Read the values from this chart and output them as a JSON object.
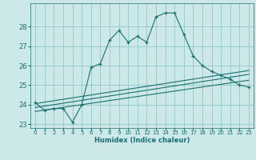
{
  "xlabel": "Humidex (Indice chaleur)",
  "bg_color": "#cce8e8",
  "line_color": "#1a7070",
  "grid_color": "#99cccc",
  "main_y": [
    24.1,
    23.7,
    23.8,
    23.8,
    23.1,
    24.0,
    25.9,
    26.1,
    27.3,
    27.8,
    27.2,
    27.5,
    27.2,
    28.5,
    28.7,
    28.7,
    27.6,
    26.5,
    26.0,
    25.7,
    25.5,
    25.3,
    25.0,
    24.9
  ],
  "x": [
    0,
    1,
    2,
    3,
    4,
    5,
    6,
    7,
    8,
    9,
    10,
    11,
    12,
    13,
    14,
    15,
    16,
    17,
    18,
    19,
    20,
    21,
    22,
    23
  ],
  "diag_lines": [
    [
      [
        0,
        24.05
      ],
      [
        23,
        25.75
      ]
    ],
    [
      [
        0,
        23.85
      ],
      [
        23,
        25.55
      ]
    ],
    [
      [
        0,
        23.65
      ],
      [
        23,
        25.25
      ]
    ]
  ],
  "ylim": [
    22.8,
    29.2
  ],
  "xlim": [
    -0.5,
    23.5
  ],
  "yticks": [
    23,
    24,
    25,
    26,
    27,
    28
  ],
  "xticks": [
    0,
    1,
    2,
    3,
    4,
    5,
    6,
    7,
    8,
    9,
    10,
    11,
    12,
    13,
    14,
    15,
    16,
    17,
    18,
    19,
    20,
    21,
    22,
    23
  ],
  "xtick_labels": [
    "0",
    "1",
    "2",
    "3",
    "4",
    "5",
    "6",
    "7",
    "8",
    "9",
    "10",
    "11",
    "12",
    "13",
    "14",
    "15",
    "16",
    "17",
    "18",
    "19",
    "20",
    "21",
    "22",
    "23"
  ]
}
